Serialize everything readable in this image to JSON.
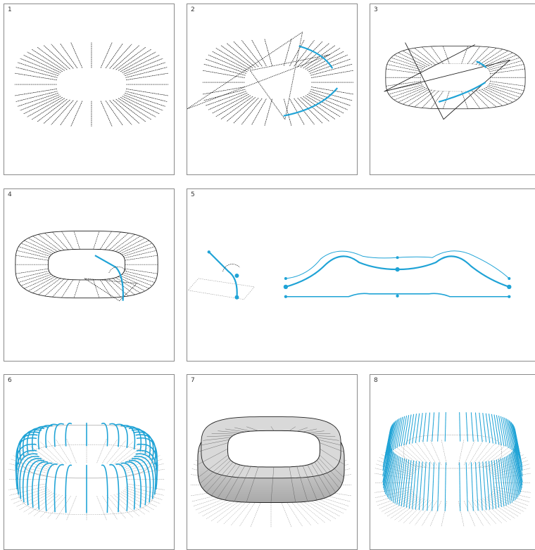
{
  "panels": [
    {
      "id": "p1",
      "number": "1"
    },
    {
      "id": "p2",
      "number": "2"
    },
    {
      "id": "p3",
      "number": "3"
    },
    {
      "id": "p4",
      "number": "4"
    },
    {
      "id": "p5",
      "number": "5"
    },
    {
      "id": "p6",
      "number": "6"
    },
    {
      "id": "p7",
      "number": "7"
    },
    {
      "id": "p8",
      "number": "8"
    }
  ],
  "colors": {
    "accent": "#1fa3d6",
    "line": "#222222",
    "grey": "#9a9a9a",
    "border": "#8a8a8a"
  }
}
